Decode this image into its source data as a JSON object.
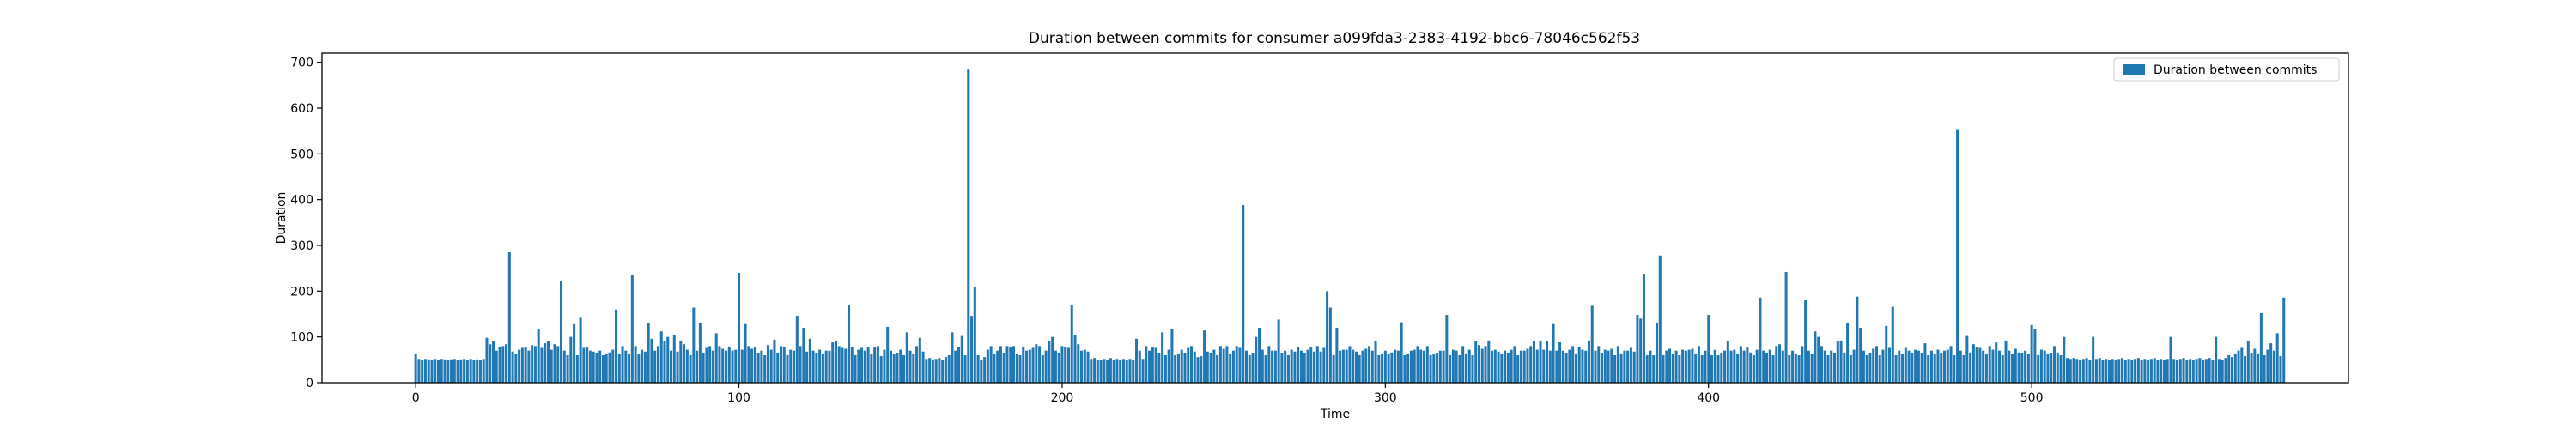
{
  "chart_data": {
    "type": "bar",
    "title": "Duration between commits for consumer a099fda3-2383-4192-bbc6-78046c562f53",
    "xlabel": "Time",
    "ylabel": "Duration",
    "xlim": [
      -29,
      598
    ],
    "ylim": [
      0,
      720
    ],
    "x_ticks": [
      0,
      100,
      200,
      300,
      400,
      500
    ],
    "y_ticks": [
      0,
      100,
      200,
      300,
      400,
      500,
      600,
      700
    ],
    "legend_position": "top-right",
    "bar_color": "#1f77b4",
    "series": [
      {
        "name": "Duration between commits",
        "color": "#1f77b4",
        "x_start": 0,
        "x_step": 1,
        "values": [
          62,
          52,
          50,
          52,
          51,
          50,
          52,
          50,
          52,
          51,
          50,
          51,
          52,
          50,
          51,
          52,
          50,
          52,
          50,
          51,
          50,
          52,
          98,
          84,
          90,
          70,
          78,
          80,
          84,
          285,
          68,
          62,
          72,
          76,
          78,
          70,
          82,
          80,
          118,
          76,
          86,
          90,
          72,
          84,
          80,
          222,
          70,
          60,
          100,
          128,
          60,
          142,
          76,
          78,
          70,
          68,
          64,
          70,
          60,
          62,
          66,
          72,
          160,
          62,
          80,
          70,
          62,
          235,
          80,
          62,
          72,
          68,
          130,
          96,
          70,
          80,
          112,
          90,
          100,
          70,
          104,
          68,
          90,
          84,
          72,
          60,
          164,
          70,
          130,
          64,
          76,
          80,
          70,
          108,
          80,
          74,
          70,
          78,
          70,
          72,
          240,
          72,
          128,
          80,
          74,
          78,
          64,
          70,
          60,
          82,
          72,
          94,
          64,
          80,
          78,
          60,
          72,
          70,
          146,
          80,
          120,
          68,
          96,
          70,
          64,
          72,
          62,
          70,
          70,
          88,
          92,
          80,
          76,
          74,
          170,
          78,
          60,
          72,
          76,
          70,
          78,
          62,
          78,
          80,
          58,
          72,
          122,
          70,
          62,
          64,
          72,
          60,
          110,
          70,
          62,
          80,
          98,
          68,
          52,
          54,
          50,
          52,
          54,
          50,
          56,
          60,
          110,
          70,
          78,
          102,
          60,
          684,
          146,
          210,
          60,
          50,
          56,
          72,
          80,
          62,
          70,
          80,
          64,
          80,
          78,
          80,
          62,
          60,
          78,
          70,
          72,
          76,
          84,
          80,
          60,
          70,
          92,
          100,
          70,
          64,
          80,
          78,
          76,
          170,
          104,
          84,
          70,
          72,
          68,
          52,
          54,
          50,
          50,
          52,
          50,
          54,
          50,
          52,
          50,
          52,
          50,
          52,
          50,
          96,
          70,
          52,
          80,
          70,
          78,
          76,
          64,
          110,
          60,
          72,
          118,
          60,
          62,
          72,
          64,
          76,
          80,
          68,
          56,
          58,
          114,
          68,
          64,
          72,
          60,
          80,
          74,
          80,
          62,
          70,
          80,
          76,
          388,
          70,
          60,
          64,
          100,
          120,
          72,
          60,
          80,
          70,
          70,
          138,
          64,
          70,
          60,
          72,
          68,
          78,
          70,
          64,
          72,
          78,
          68,
          80,
          68,
          76,
          200,
          164,
          60,
          120,
          70,
          72,
          72,
          80,
          72,
          68,
          60,
          70,
          74,
          80,
          70,
          90,
          60,
          62,
          70,
          62,
          66,
          72,
          70,
          132,
          60,
          62,
          70,
          72,
          80,
          72,
          70,
          80,
          60,
          62,
          64,
          70,
          70,
          148,
          60,
          72,
          70,
          60,
          80,
          62,
          72,
          60,
          90,
          82,
          74,
          80,
          92,
          70,
          72,
          68,
          62,
          70,
          64,
          72,
          80,
          60,
          70,
          70,
          74,
          80,
          90,
          72,
          92,
          72,
          90,
          70,
          128,
          70,
          88,
          70,
          64,
          72,
          80,
          62,
          78,
          72,
          70,
          92,
          168,
          70,
          80,
          64,
          72,
          70,
          74,
          60,
          80,
          62,
          70,
          70,
          76,
          68,
          148,
          140,
          238,
          60,
          70,
          60,
          130,
          278,
          60,
          70,
          74,
          62,
          70,
          60,
          72,
          70,
          72,
          74,
          62,
          80,
          60,
          70,
          148,
          60,
          72,
          60,
          64,
          70,
          90,
          70,
          72,
          62,
          80,
          70,
          78,
          66,
          60,
          72,
          186,
          70,
          64,
          72,
          60,
          80,
          84,
          70,
          242,
          60,
          70,
          62,
          60,
          80,
          180,
          70,
          62,
          112,
          100,
          80,
          70,
          60,
          70,
          64,
          90,
          92,
          66,
          130,
          60,
          72,
          188,
          120,
          70,
          60,
          64,
          74,
          80,
          60,
          72,
          124,
          76,
          166,
          60,
          70,
          62,
          76,
          70,
          64,
          72,
          70,
          64,
          86,
          60,
          70,
          62,
          72,
          64,
          70,
          72,
          80,
          60,
          554,
          70,
          60,
          102,
          66,
          84,
          78,
          76,
          70,
          62,
          80,
          72,
          88,
          70,
          60,
          92,
          70,
          62,
          74,
          66,
          64,
          70,
          62,
          126,
          118,
          60,
          72,
          70,
          62,
          64,
          80,
          66,
          60,
          100,
          54,
          52,
          54,
          52,
          50,
          52,
          54,
          50,
          100,
          52,
          54,
          50,
          52,
          50,
          52,
          50,
          52,
          54,
          50,
          52,
          50,
          52,
          54,
          50,
          52,
          50,
          52,
          54,
          50,
          52,
          50,
          52,
          100,
          52,
          50,
          52,
          54,
          50,
          52,
          50,
          52,
          54,
          50,
          52,
          54,
          50,
          100,
          52,
          50,
          54,
          60,
          56,
          62,
          70,
          76,
          58,
          90,
          64,
          74,
          62,
          152,
          60,
          72,
          86,
          70,
          108,
          58,
          186
        ]
      }
    ]
  }
}
